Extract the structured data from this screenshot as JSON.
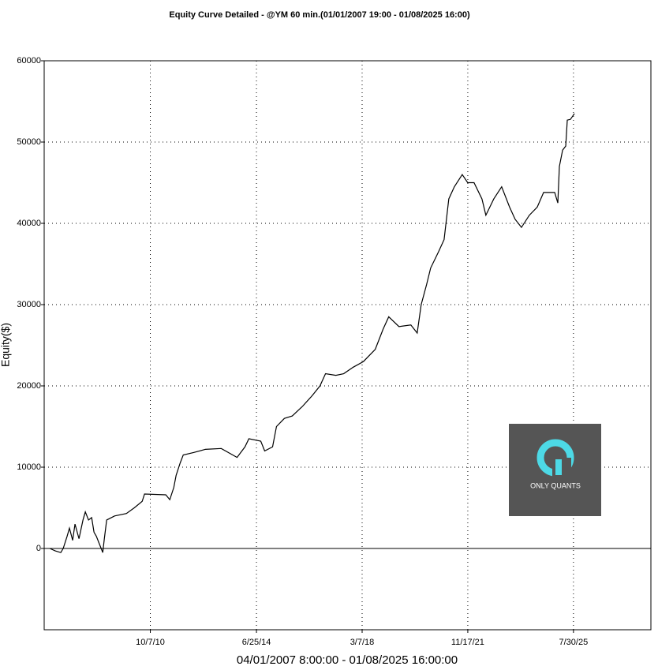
{
  "chart_data": {
    "type": "line",
    "title": "Equity Curve Detailed - @YM 60 min.(01/01/2007 19:00 - 01/08/2025 16:00)",
    "x_label": "04/01/2007 8:00:00 - 01/08/2025 16:00:00",
    "y_label": "Equity($)",
    "watermark": "ONLY QUANTS",
    "grid": true,
    "xlim": [
      "2007-01-19",
      "2028-04-15"
    ],
    "ylim": [
      -10000,
      60000
    ],
    "xticks": [
      {
        "value": "2010-10-07",
        "label": "10/7/10"
      },
      {
        "value": "2014-06-25",
        "label": "6/25/14"
      },
      {
        "value": "2018-03-07",
        "label": "3/7/18"
      },
      {
        "value": "2021-11-17",
        "label": "11/17/21"
      },
      {
        "value": "2025-07-30",
        "label": "7/30/25"
      }
    ],
    "yticks": [
      0,
      10000,
      20000,
      30000,
      40000,
      50000,
      60000
    ],
    "x": [
      "2007-04-01",
      "2007-06-10",
      "2007-08-19",
      "2007-09-19",
      "2007-11-08",
      "2007-12-08",
      "2008-01-18",
      "2008-02-17",
      "2008-04-08",
      "2008-05-29",
      "2008-06-28",
      "2008-08-08",
      "2008-09-17",
      "2008-10-17",
      "2008-11-16",
      "2008-12-27",
      "2009-02-06",
      "2009-02-26",
      "2009-03-28",
      "2009-07-07",
      "2009-12-05",
      "2010-03-16",
      "2010-06-25",
      "2010-07-25",
      "2011-04-23",
      "2011-06-13",
      "2011-08-03",
      "2011-09-02",
      "2011-10-23",
      "2011-12-02",
      "2012-04-12",
      "2012-09-11",
      "2013-04-01",
      "2013-10-20",
      "2014-01-29",
      "2014-03-20",
      "2014-08-19",
      "2014-10-08",
      "2015-01-17",
      "2015-03-08",
      "2015-06-17",
      "2015-09-26",
      "2016-02-05",
      "2016-06-06",
      "2016-09-14",
      "2016-11-24",
      "2017-04-05",
      "2017-07-14",
      "2017-11-13",
      "2018-03-24",
      "2018-08-22",
      "2018-12-01",
      "2019-02-10",
      "2019-06-21",
      "2019-11-20",
      "2020-02-09",
      "2020-03-31",
      "2020-06-09",
      "2020-07-30",
      "2020-11-08",
      "2021-01-18",
      "2021-03-19",
      "2021-05-29",
      "2021-09-07",
      "2021-11-16",
      "2022-02-05",
      "2022-05-17",
      "2022-07-06",
      "2022-10-15",
      "2023-01-24",
      "2023-05-05",
      "2023-07-15",
      "2023-10-04",
      "2024-01-13",
      "2024-04-23",
      "2024-07-13",
      "2024-12-02",
      "2025-01-11",
      "2025-01-31",
      "2025-03-13",
      "2025-04-22",
      "2025-05-12",
      "2025-06-22",
      "2025-08-11"
    ],
    "series": [
      {
        "name": "Equity",
        "color": "#000000",
        "values": [
          0,
          -300,
          -500,
          0,
          1500,
          2500,
          1000,
          3000,
          1200,
          3500,
          4500,
          3500,
          3800,
          2000,
          1500,
          500,
          -500,
          1200,
          3500,
          4000,
          4300,
          5000,
          5800,
          6700,
          6600,
          6000,
          7500,
          9000,
          10500,
          11500,
          11800,
          12200,
          12300,
          11200,
          12500,
          13500,
          13200,
          12000,
          12500,
          15000,
          16000,
          16300,
          17500,
          18800,
          20000,
          21500,
          21300,
          21500,
          22300,
          23000,
          24500,
          27000,
          28500,
          27300,
          27500,
          26500,
          30000,
          32500,
          34500,
          36500,
          38000,
          43000,
          44500,
          46000,
          45000,
          45000,
          43000,
          41000,
          43000,
          44500,
          42000,
          40500,
          39500,
          41000,
          42000,
          43800,
          43800,
          42500,
          47000,
          49000,
          49500,
          52700,
          52800,
          53500
        ]
      }
    ]
  }
}
